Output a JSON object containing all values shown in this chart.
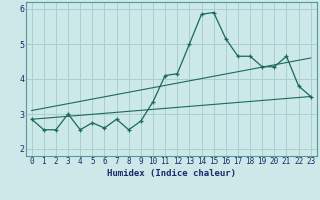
{
  "xlabel": "Humidex (Indice chaleur)",
  "bg_color": "#cce8e8",
  "grid_color": "#aacece",
  "line_color": "#1a6a5a",
  "xlim": [
    -0.5,
    23.5
  ],
  "ylim": [
    1.8,
    6.2
  ],
  "yticks": [
    2,
    3,
    4,
    5,
    6
  ],
  "xticks": [
    0,
    1,
    2,
    3,
    4,
    5,
    6,
    7,
    8,
    9,
    10,
    11,
    12,
    13,
    14,
    15,
    16,
    17,
    18,
    19,
    20,
    21,
    22,
    23
  ],
  "line1_x": [
    0,
    1,
    2,
    3,
    4,
    5,
    6,
    7,
    8,
    9,
    10,
    11,
    12,
    13,
    14,
    15,
    16,
    17,
    18,
    19,
    20,
    21,
    22,
    23
  ],
  "line1_y": [
    2.85,
    2.55,
    2.55,
    3.0,
    2.55,
    2.75,
    2.6,
    2.85,
    2.55,
    2.8,
    3.35,
    4.1,
    4.15,
    5.0,
    5.85,
    5.9,
    5.15,
    4.65,
    4.65,
    4.35,
    4.35,
    4.65,
    3.8,
    3.5
  ],
  "line2_x": [
    0,
    23
  ],
  "line2_y": [
    2.85,
    3.5
  ],
  "line3_x": [
    0,
    23
  ],
  "line3_y": [
    3.1,
    4.6
  ],
  "xlabel_fontsize": 6.5,
  "tick_fontsize": 5.5
}
